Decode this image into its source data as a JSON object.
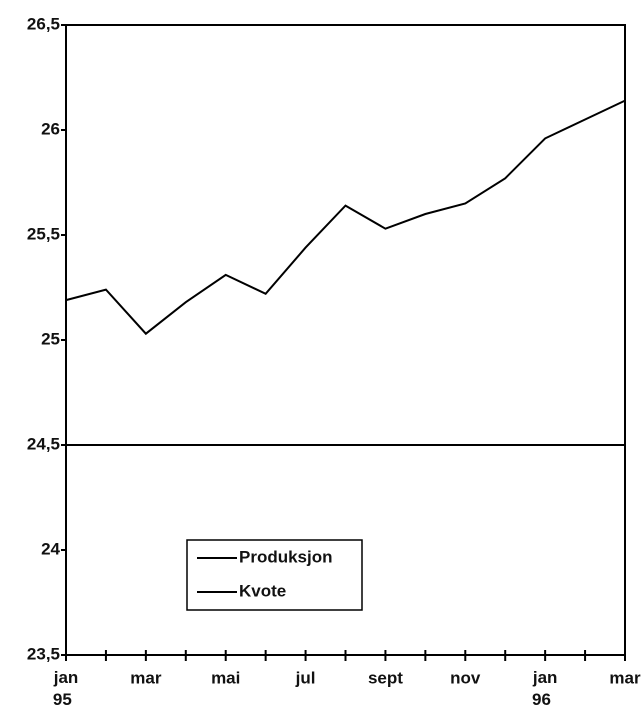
{
  "chart_data": {
    "type": "line",
    "categories": [
      "jan 95",
      null,
      "mar",
      null,
      "mai",
      null,
      "jul",
      null,
      "sept",
      null,
      "nov",
      null,
      "jan 96",
      null,
      "mar"
    ],
    "series": [
      {
        "name": "Produksjon",
        "color": "#000000",
        "values": [
          25.19,
          25.24,
          25.03,
          25.18,
          25.31,
          25.22,
          25.44,
          25.64,
          25.53,
          25.6,
          25.65,
          25.77,
          25.96,
          26.05,
          26.14
        ]
      },
      {
        "name": "Kvote",
        "color": "#000000",
        "values": [
          24.5,
          24.5,
          24.5,
          24.5,
          24.5,
          24.5,
          24.5,
          24.5,
          24.5,
          24.5,
          24.5,
          24.5,
          24.5,
          24.5,
          24.5
        ]
      }
    ],
    "ylim": [
      23.5,
      26.5
    ],
    "yticks": [
      {
        "value": 23.5,
        "label": "23,5"
      },
      24,
      {
        "value": 24.5,
        "label": "24,5"
      },
      25,
      {
        "value": 25.5,
        "label": "25,5"
      },
      26,
      {
        "value": 26.5,
        "label": "26,5"
      }
    ],
    "grid": false
  }
}
